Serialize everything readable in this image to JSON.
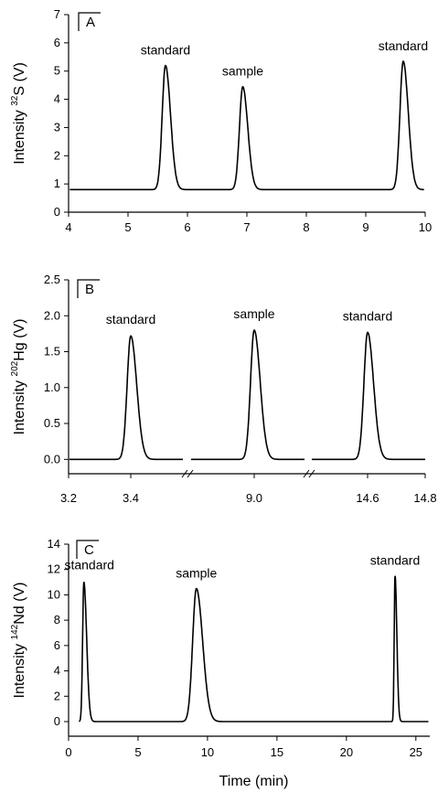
{
  "chart_data": [
    {
      "id": "A",
      "type": "line",
      "panel_label": "A",
      "ylabel": {
        "prefix": "Intensity ",
        "sup": "32",
        "suffix": "S (V)"
      },
      "xlim": [
        4,
        10
      ],
      "ylim": [
        0,
        7
      ],
      "xticks": [
        4,
        5,
        6,
        7,
        8,
        9,
        10
      ],
      "yticks": [
        0,
        1,
        2,
        3,
        4,
        5,
        6,
        7
      ],
      "baseline": 0.8,
      "peaks": [
        {
          "x": 5.63,
          "height": 5.2,
          "label": "standard"
        },
        {
          "x": 6.93,
          "height": 4.45,
          "label": "sample"
        },
        {
          "x": 9.63,
          "height": 5.35,
          "label": "standard"
        }
      ]
    },
    {
      "id": "B",
      "type": "line",
      "panel_label": "B",
      "ylabel": {
        "prefix": "Intensity ",
        "sup": "202",
        "suffix": "Hg (V)"
      },
      "ylim": [
        -0.2,
        2.5
      ],
      "yticks": [
        "0.0",
        "0.5",
        "1.0",
        "1.5",
        "2.0",
        "2.5"
      ],
      "xtick_labels": [
        "3.2",
        "3.4",
        "9.0",
        "14.6",
        "14.8"
      ],
      "broken_axis": true,
      "baseline": 0.0,
      "peaks": [
        {
          "x": "3.4",
          "height": 1.72,
          "label": "standard"
        },
        {
          "x": "9.0",
          "height": 1.8,
          "label": "sample"
        },
        {
          "x": "14.6",
          "height": 1.77,
          "label": "standard"
        }
      ]
    },
    {
      "id": "C",
      "type": "line",
      "panel_label": "C",
      "ylabel": {
        "prefix": "Intensity ",
        "sup": "142",
        "suffix": "Nd (V)"
      },
      "xlabel": "Time (min)",
      "xlim": [
        0,
        26
      ],
      "ylim": [
        -1,
        14
      ],
      "xticks": [
        0,
        5,
        10,
        15,
        20,
        25
      ],
      "yticks": [
        0,
        2,
        4,
        6,
        8,
        10,
        12,
        14
      ],
      "baseline": 0.0,
      "peaks": [
        {
          "x": 1.1,
          "height": 11.0,
          "label": "standard"
        },
        {
          "x": 9.2,
          "height": 10.5,
          "label": "sample"
        },
        {
          "x": 23.5,
          "height": 11.5,
          "label": "standard"
        }
      ]
    }
  ]
}
